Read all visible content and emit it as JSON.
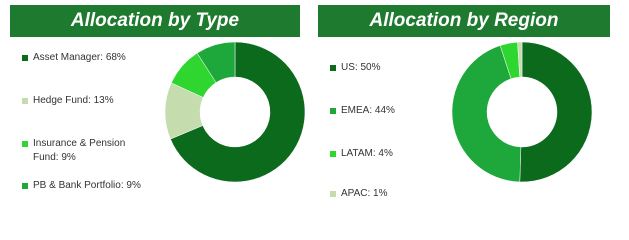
{
  "chart_data": [
    {
      "type": "donut",
      "title": "Allocation by Type",
      "categories": [
        "Asset Manager: 68%",
        "Hedge Fund: 13%",
        "Insurance & Pension Fund: 9%",
        "PB & Bank Portfolio: 9%"
      ],
      "values": [
        68,
        13,
        9,
        9
      ],
      "colors": [
        "#0c6a1d",
        "#c4dcae",
        "#2fd62f",
        "#1ea83c"
      ]
    },
    {
      "type": "donut",
      "title": "Allocation by Region",
      "categories": [
        "US: 50%",
        "EMEA: 44%",
        "LATAM: 4%",
        "APAC: 1%"
      ],
      "values": [
        50,
        44,
        4,
        1
      ],
      "colors": [
        "#0c6a1d",
        "#1ea83c",
        "#2fd62f",
        "#c4dcae"
      ]
    }
  ]
}
